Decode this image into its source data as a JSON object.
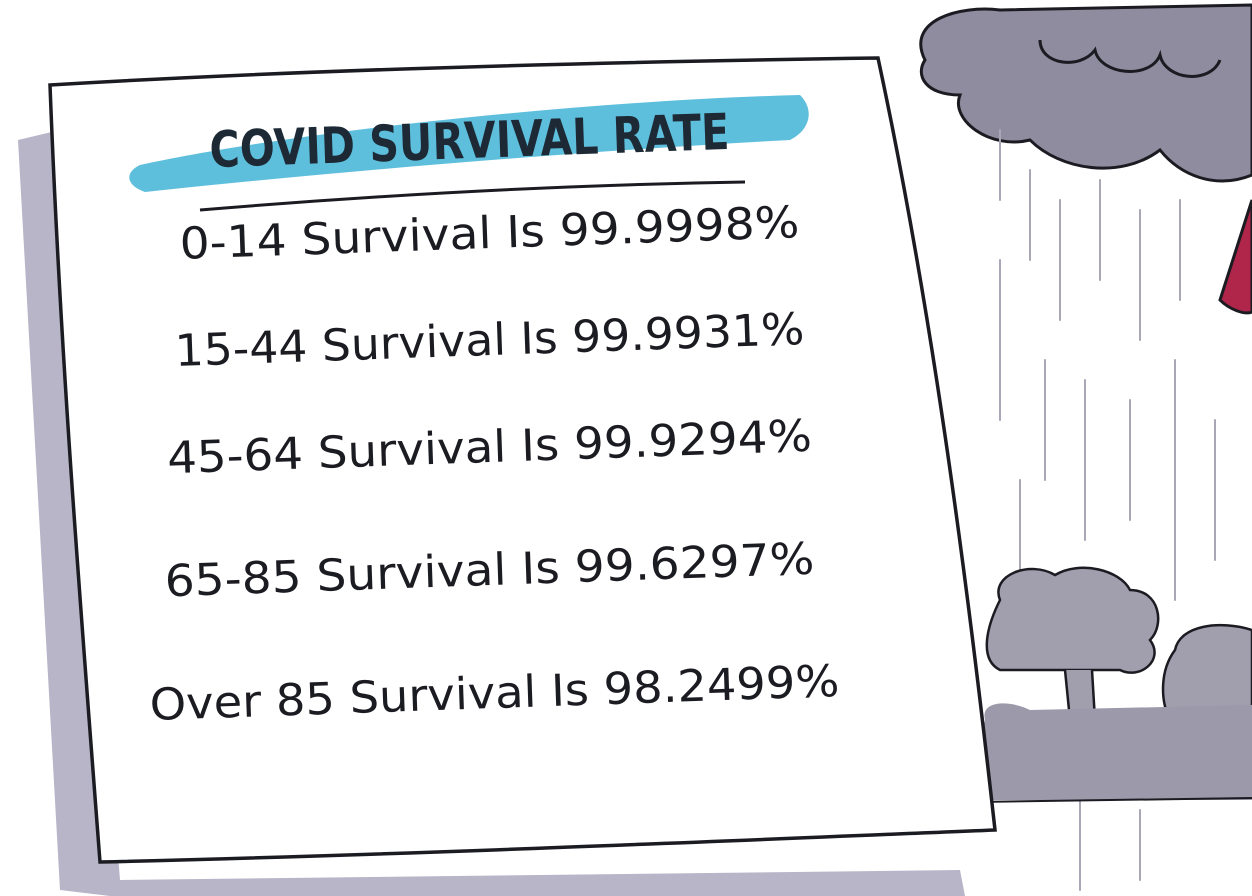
{
  "sign": {
    "title": "COVID SURVIVAL RATE",
    "lines": [
      "0-14 Survival Is 99.9998%",
      "15-44 Survival Is 99.9931%",
      "45-64 Survival Is 99.9294%",
      "65-85 Survival Is 99.6297%",
      "Over 85 Survival Is 98.2499%"
    ]
  }
}
